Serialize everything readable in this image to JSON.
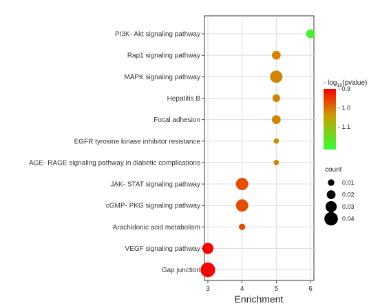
{
  "chart_data": {
    "type": "scatter",
    "xlabel": "Enrichment",
    "x_ticks": [
      3,
      4,
      5,
      6
    ],
    "xlim": [
      2.9,
      6.1
    ],
    "categories": [
      "PI3K- Akt signaling pathway",
      "Rap1 signaling pathway",
      "MAPK signaling pathway",
      "Hepatitis B",
      "Focal adhesion",
      "EGFR tyrosine kinase inhibitor resistance",
      "AGE- RAGE signaling pathway in diabetic complications",
      "JAK- STAT signaling pathway",
      "cGMP- PKG signaling pathway",
      "Arachidonic acid metabolism",
      "VEGF signaling pathway",
      "Gap junction"
    ],
    "points": [
      {
        "category": "PI3K- Akt signaling pathway",
        "enrichment": 6,
        "log_pvalue": 1.2,
        "count": 0.02
      },
      {
        "category": "Rap1 signaling pathway",
        "enrichment": 5,
        "log_pvalue": 1.02,
        "count": 0.02
      },
      {
        "category": "MAPK signaling pathway",
        "enrichment": 5,
        "log_pvalue": 1.02,
        "count": 0.035
      },
      {
        "category": "Hepatitis B",
        "enrichment": 5,
        "log_pvalue": 1.02,
        "count": 0.015
      },
      {
        "category": "Focal adhesion",
        "enrichment": 5,
        "log_pvalue": 1.02,
        "count": 0.02
      },
      {
        "category": "EGFR tyrosine kinase inhibitor resistance",
        "enrichment": 5,
        "log_pvalue": 1.02,
        "count": 0.005
      },
      {
        "category": "AGE- RAGE signaling pathway in diabetic complications",
        "enrichment": 5,
        "log_pvalue": 1.02,
        "count": 0.005
      },
      {
        "category": "JAK- STAT signaling pathway",
        "enrichment": 4,
        "log_pvalue": 0.97,
        "count": 0.035
      },
      {
        "category": "cGMP- PKG signaling pathway",
        "enrichment": 4,
        "log_pvalue": 0.97,
        "count": 0.035
      },
      {
        "category": "Arachidonic acid metabolism",
        "enrichment": 4,
        "log_pvalue": 0.97,
        "count": 0.01
      },
      {
        "category": "VEGF signaling pathway",
        "enrichment": 3,
        "log_pvalue": 0.9,
        "count": 0.03
      },
      {
        "category": "Gap junction",
        "enrichment": 3,
        "log_pvalue": 0.9,
        "count": 0.045
      }
    ],
    "color_legend": {
      "title_prefix": "- log",
      "title_sub": "10",
      "title_suffix": "(pvalue)",
      "ticks": [
        {
          "label": "- 0.9",
          "value": 0.9
        },
        {
          "label": "- 1.0",
          "value": 1.0
        },
        {
          "label": "- 1.1",
          "value": 1.1
        }
      ],
      "range": [
        0.9,
        1.22
      ],
      "low_color": "#ff0000",
      "mid_color": "#c8a000",
      "high_color": "#33ff33"
    },
    "size_legend": {
      "title": "count",
      "entries": [
        {
          "label": "0.01",
          "value": 0.01
        },
        {
          "label": "0.02",
          "value": 0.02
        },
        {
          "label": "0.03",
          "value": 0.03
        },
        {
          "label": "0.04",
          "value": 0.04
        }
      ]
    },
    "grid": true
  }
}
